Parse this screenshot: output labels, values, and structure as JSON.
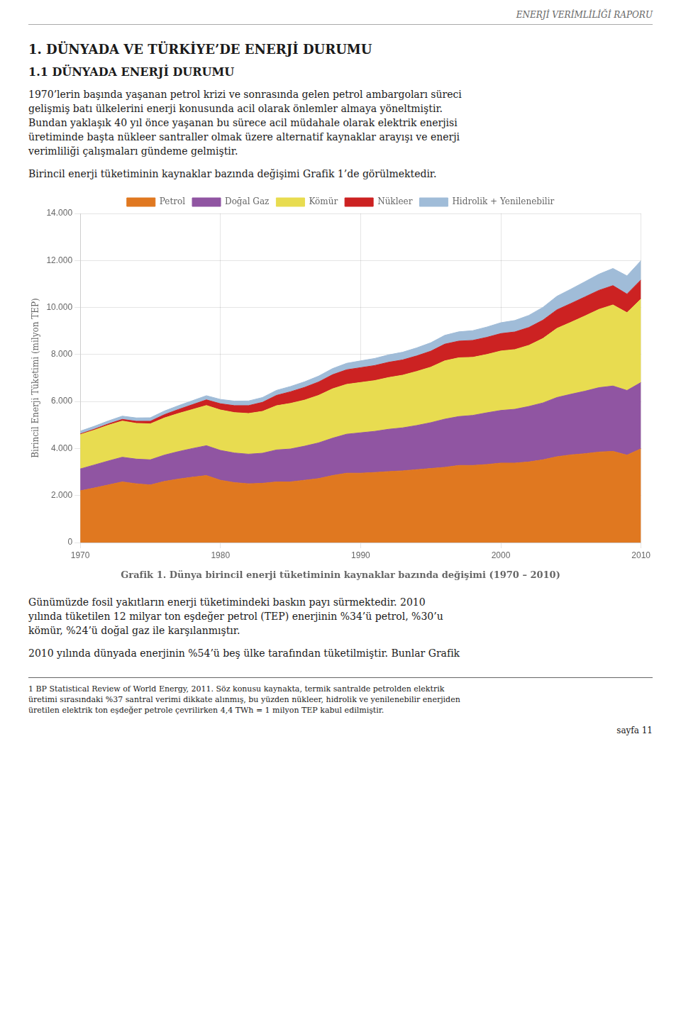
{
  "chart_data": {
    "type": "area",
    "title": "Grafik 1. Dünya birincil enerji tüketiminin kaynaklar bazında değişimi (1970 – 2010)",
    "ylabel": "Birincil Enerji Tüketimi (milyon TEP)",
    "x": [
      1970,
      1971,
      1972,
      1973,
      1974,
      1975,
      1976,
      1977,
      1978,
      1979,
      1980,
      1981,
      1982,
      1983,
      1984,
      1985,
      1986,
      1987,
      1988,
      1989,
      1990,
      1991,
      1992,
      1993,
      1994,
      1995,
      1996,
      1997,
      1998,
      1999,
      2000,
      2001,
      2002,
      2003,
      2004,
      2005,
      2006,
      2007,
      2008,
      2009,
      2010
    ],
    "series": [
      {
        "name": "Petrol",
        "color": "#E07820",
        "values": [
          2200,
          2320,
          2450,
          2580,
          2500,
          2450,
          2600,
          2700,
          2780,
          2850,
          2650,
          2550,
          2500,
          2520,
          2580,
          2580,
          2650,
          2720,
          2850,
          2950,
          2950,
          2980,
          3020,
          3050,
          3100,
          3150,
          3200,
          3280,
          3280,
          3320,
          3380,
          3380,
          3430,
          3520,
          3650,
          3730,
          3780,
          3850,
          3880,
          3720,
          3990
        ]
      },
      {
        "name": "Doğal Gaz",
        "color": "#9055A2",
        "values": [
          930,
          980,
          1020,
          1050,
          1050,
          1070,
          1120,
          1170,
          1220,
          1270,
          1270,
          1260,
          1260,
          1280,
          1360,
          1400,
          1450,
          1520,
          1590,
          1660,
          1720,
          1750,
          1800,
          1830,
          1880,
          1950,
          2050,
          2080,
          2130,
          2200,
          2240,
          2290,
          2360,
          2420,
          2520,
          2580,
          2660,
          2740,
          2780,
          2750,
          2820
        ]
      },
      {
        "name": "Kömür",
        "color": "#E8DC50",
        "values": [
          1460,
          1480,
          1520,
          1540,
          1520,
          1530,
          1580,
          1620,
          1660,
          1710,
          1720,
          1720,
          1730,
          1780,
          1880,
          1940,
          1960,
          2020,
          2100,
          2120,
          2140,
          2160,
          2200,
          2240,
          2300,
          2360,
          2480,
          2500,
          2470,
          2480,
          2530,
          2540,
          2600,
          2740,
          2940,
          3060,
          3200,
          3330,
          3450,
          3310,
          3555
        ]
      },
      {
        "name": "Nükleer",
        "color": "#CC2222",
        "values": [
          30,
          40,
          55,
          70,
          90,
          110,
          140,
          170,
          205,
          240,
          265,
          295,
          335,
          385,
          440,
          495,
          540,
          570,
          600,
          620,
          630,
          640,
          650,
          650,
          660,
          680,
          710,
          710,
          720,
          730,
          740,
          750,
          760,
          780,
          790,
          800,
          810,
          810,
          820,
          790,
          810
        ]
      },
      {
        "name": "Hidrolik + Yenilenebilir",
        "color": "#A0BCD8",
        "values": [
          120,
          125,
          130,
          138,
          143,
          148,
          155,
          162,
          170,
          178,
          186,
          192,
          198,
          205,
          215,
          225,
          238,
          250,
          262,
          275,
          290,
          302,
          315,
          328,
          342,
          358,
          375,
          395,
          415,
          438,
          462,
          488,
          515,
          545,
          578,
          612,
          648,
          688,
          730,
          775,
          820
        ]
      }
    ],
    "xlim": [
      1970,
      2010
    ],
    "xticks": [
      1970,
      1980,
      1990,
      2000,
      2010
    ],
    "ylim": [
      0,
      14000
    ],
    "yticks": [
      0,
      {
        "value": 2000,
        "label": "2.000"
      },
      {
        "value": 4000,
        "label": "4.000"
      },
      {
        "value": 6000,
        "label": "6.000"
      },
      {
        "value": 8000,
        "label": "8.000"
      },
      {
        "value": 10000,
        "label": "10.000"
      },
      {
        "value": 12000,
        "label": "12.000"
      },
      {
        "value": 14000,
        "label": "14.000"
      }
    ],
    "stacked": true,
    "grid": true,
    "legend": "top",
    "annotations": [
      "ENERJİ VERİMLİLİĞİ RAPORU",
      "1. DÜNYADA VE TÜRKİYE’DE ENERJİ DURUMU",
      "1.1 DÜNYADA ENERJİ DURUMU",
      "1970’lerin başında yaşanan petrol krizi ve sonrasında gelen petrol ambargoları süreci",
      "gelişmiş batı ülkelerini enerji konusunda acil olarak önlemler almaya yöneltmiştir.",
      "Bundan yaklaşık 40 yıl önce yaşanan bu sürece acil müdahale olarak elektrik enerjisi",
      "üretiminde başta nükleer santraller olmak üzere alternatif kaynaklar arayışı ve enerji",
      "verimliliği çalışmaları gündeme gelmiştir.",
      "Birincil enerji tüketiminin kaynaklar bazında değişimi Grafik 1’de görülmektedir.",
      "Günümüzde fosil yakıtların enerji tüketimindeki baskın payı sürmektedir. 2010",
      "yılında tüketilen 12 milyar ton eşdeğer petrol (TEP) enerjinin %34’ü petrol, %30’u",
      "kömür, %24’ü doğal gaz ile karşılanmıştır.",
      "2010 yılında dünyada enerjinin %54’ü beş ülke tarafından tüketilmiştir. Bunlar Grafik",
      "1 BP Statistical Review of World Energy, 2011. Söz konusu kaynakta, termik santralde petrolden elektrik",
      "üretimi sırasındaki %37 santral verimi dikkate alınmış, bu yüzden nükleer, hidrolik ve yenilenebilir enerjiden",
      "üretilen elektrik ton eşdeğer petrole çevrilirken 4,4 TWh = 1 milyon TEP kabul edilmiştir.",
      "sayfa 11"
    ]
  }
}
